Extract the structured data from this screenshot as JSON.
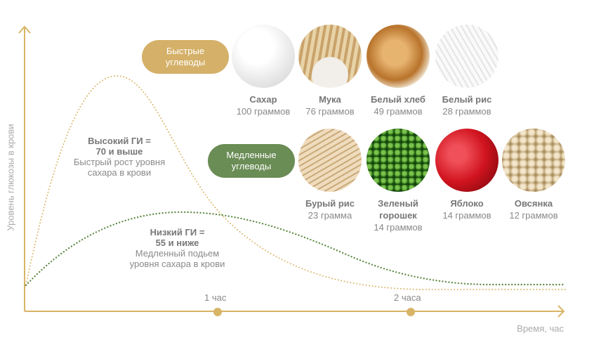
{
  "colors": {
    "fast": "#d4b068",
    "slow": "#6a8c55",
    "axis": "#d8b466"
  },
  "axes": {
    "y_label": "Уровень глюкозы в крови",
    "x_label": "Время, час",
    "ticks": [
      "1 час",
      "2 часа"
    ]
  },
  "curves": {
    "high": {
      "title_line1": "Высокий ГИ =",
      "title_line2": "70 и выше",
      "desc_line1": "Быстрый рост уровня",
      "desc_line2": "сахара в крови"
    },
    "low": {
      "title_line1": "Низкий ГИ =",
      "title_line2": "55 и ниже",
      "desc_line1": "Медленный подьем",
      "desc_line2": "уровня сахара в крови"
    }
  },
  "groups": {
    "fast": {
      "label_line1": "Быстрые",
      "label_line2": "углеводы",
      "items": [
        {
          "name": "Сахар",
          "amount": "100 граммов",
          "image": "sugar-cubes"
        },
        {
          "name": "Мука",
          "amount": "76 граммов",
          "image": "flour-wheat"
        },
        {
          "name": "Белый хлеб",
          "amount": "49 граммов",
          "image": "white-bread"
        },
        {
          "name": "Белый рис",
          "amount": "28 граммов",
          "image": "white-rice"
        }
      ]
    },
    "slow": {
      "label_line1": "Медленные",
      "label_line2": "углеводы",
      "items": [
        {
          "name": "Бурый рис",
          "amount": "23 грамма",
          "image": "brown-rice"
        },
        {
          "name": "Зеленый горошек",
          "amount": "14 граммов",
          "image": "green-peas"
        },
        {
          "name": "Яблоко",
          "amount": "14 граммов",
          "image": "red-apple"
        },
        {
          "name": "Овсянка",
          "amount": "12 граммов",
          "image": "oat-flakes"
        }
      ]
    }
  }
}
